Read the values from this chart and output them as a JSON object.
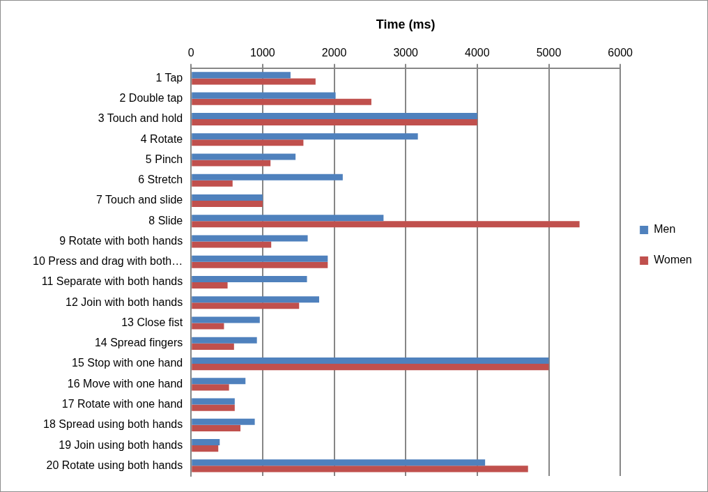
{
  "chart_data": {
    "type": "bar",
    "orientation": "horizontal",
    "xlabel": "Time (ms)",
    "categories": [
      "1 Tap",
      "2 Double tap",
      "3 Touch and hold",
      "4 Rotate",
      "5 Pinch",
      "6 Stretch",
      "7 Touch and slide",
      "8 Slide",
      "9 Rotate with both hands",
      "10 Press and drag with both…",
      "11 Separate with both hands",
      "12 Join with both hands",
      "13 Close fist",
      "14 Spread fingers",
      "15 Stop with one hand",
      "16 Move with one hand",
      "17 Rotate with one hand",
      "18 Spread using both hands",
      "19 Join using both hands",
      "20 Rotate using both hands"
    ],
    "series": [
      {
        "name": "Men",
        "color": "#4f81bd",
        "values": [
          1390,
          2020,
          4000,
          3170,
          1460,
          2120,
          1000,
          2690,
          1630,
          1910,
          1620,
          1790,
          960,
          920,
          5000,
          760,
          610,
          890,
          400,
          4110
        ]
      },
      {
        "name": "Women",
        "color": "#c0504d",
        "values": [
          1740,
          2520,
          4000,
          1570,
          1110,
          580,
          1000,
          5430,
          1120,
          1910,
          510,
          1510,
          460,
          600,
          5000,
          530,
          610,
          690,
          380,
          4710
        ]
      }
    ],
    "xlim": [
      0,
      6000
    ],
    "xticks": [
      0,
      1000,
      2000,
      3000,
      4000,
      5000,
      6000
    ],
    "grid": "x",
    "legend": "right"
  }
}
